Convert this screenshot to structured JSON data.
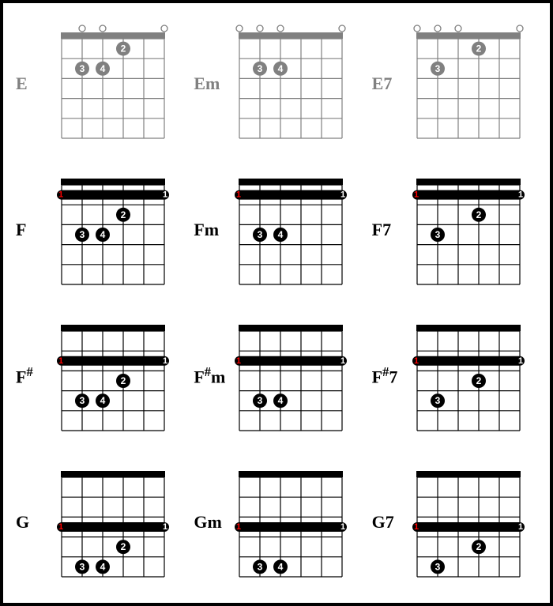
{
  "layout": {
    "rows": 4,
    "cols": 3,
    "diagram": {
      "strings": 6,
      "frets": 5,
      "width": 150,
      "height": 150,
      "nut_height": 8,
      "line_color": "#000000",
      "finger_radius": 9,
      "finger_fill": "#000000",
      "finger_text_color": "#ffffff",
      "finger_fontsize": 12,
      "open_radius": 4,
      "barre_height": 12,
      "barre_end_text_color": "#ffffff",
      "barre_start_text_color": "#ff0000"
    },
    "label_fontsize": 22,
    "label_fontsize_sharp": 22,
    "faded_color": "#808080"
  },
  "chords": [
    {
      "name": "E",
      "faded": true,
      "open": [
        2,
        3,
        6
      ],
      "barre": null,
      "fingers": [
        {
          "string": 4,
          "fret": 1,
          "num": "2"
        },
        {
          "string": 2,
          "fret": 2,
          "num": "3"
        },
        {
          "string": 3,
          "fret": 2,
          "num": "4"
        }
      ]
    },
    {
      "name": "Em",
      "faded": true,
      "open": [
        1,
        2,
        3,
        6
      ],
      "barre": null,
      "fingers": [
        {
          "string": 2,
          "fret": 2,
          "num": "3"
        },
        {
          "string": 3,
          "fret": 2,
          "num": "4"
        }
      ]
    },
    {
      "name": "E7",
      "faded": true,
      "open": [
        1,
        2,
        3,
        6
      ],
      "barre": null,
      "fingers": [
        {
          "string": 4,
          "fret": 1,
          "num": "2"
        },
        {
          "string": 2,
          "fret": 2,
          "num": "3"
        }
      ]
    },
    {
      "name": "F",
      "faded": false,
      "open": [],
      "barre": {
        "fret": 1
      },
      "fingers": [
        {
          "string": 4,
          "fret": 2,
          "num": "2"
        },
        {
          "string": 2,
          "fret": 3,
          "num": "3"
        },
        {
          "string": 3,
          "fret": 3,
          "num": "4"
        }
      ]
    },
    {
      "name": "Fm",
      "faded": false,
      "open": [],
      "barre": {
        "fret": 1
      },
      "fingers": [
        {
          "string": 2,
          "fret": 3,
          "num": "3"
        },
        {
          "string": 3,
          "fret": 3,
          "num": "4"
        }
      ]
    },
    {
      "name": "F7",
      "faded": false,
      "open": [],
      "barre": {
        "fret": 1
      },
      "fingers": [
        {
          "string": 4,
          "fret": 2,
          "num": "2"
        },
        {
          "string": 2,
          "fret": 3,
          "num": "3"
        }
      ]
    },
    {
      "name": "F#",
      "sharp": true,
      "faded": false,
      "open": [],
      "barre": {
        "fret": 2
      },
      "fingers": [
        {
          "string": 4,
          "fret": 3,
          "num": "2"
        },
        {
          "string": 2,
          "fret": 4,
          "num": "3"
        },
        {
          "string": 3,
          "fret": 4,
          "num": "4"
        }
      ]
    },
    {
      "name": "F#m",
      "sharp": true,
      "faded": false,
      "open": [],
      "barre": {
        "fret": 2
      },
      "fingers": [
        {
          "string": 2,
          "fret": 4,
          "num": "3"
        },
        {
          "string": 3,
          "fret": 4,
          "num": "4"
        }
      ]
    },
    {
      "name": "F#7",
      "sharp": true,
      "faded": false,
      "open": [],
      "barre": {
        "fret": 2
      },
      "fingers": [
        {
          "string": 4,
          "fret": 3,
          "num": "2"
        },
        {
          "string": 2,
          "fret": 4,
          "num": "3"
        }
      ]
    },
    {
      "name": "G",
      "faded": false,
      "open": [],
      "barre": {
        "fret": 3
      },
      "fingers": [
        {
          "string": 4,
          "fret": 4,
          "num": "2"
        },
        {
          "string": 2,
          "fret": 5,
          "num": "3"
        },
        {
          "string": 3,
          "fret": 5,
          "num": "4"
        }
      ]
    },
    {
      "name": "Gm",
      "faded": false,
      "open": [],
      "barre": {
        "fret": 3
      },
      "fingers": [
        {
          "string": 2,
          "fret": 5,
          "num": "3"
        },
        {
          "string": 3,
          "fret": 5,
          "num": "4"
        }
      ]
    },
    {
      "name": "G7",
      "faded": false,
      "open": [],
      "barre": {
        "fret": 3
      },
      "fingers": [
        {
          "string": 4,
          "fret": 4,
          "num": "2"
        },
        {
          "string": 2,
          "fret": 5,
          "num": "3"
        }
      ]
    }
  ]
}
